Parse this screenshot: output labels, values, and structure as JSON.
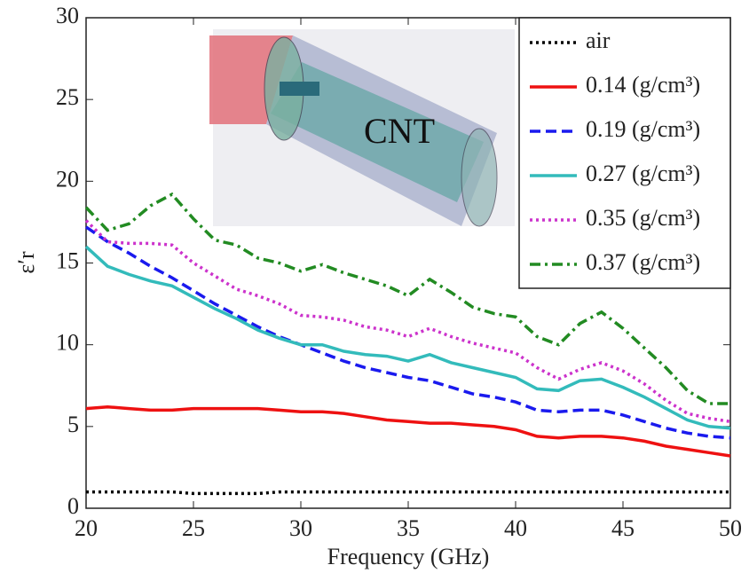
{
  "chart_data": {
    "type": "line",
    "x_label": "Frequency (GHz)",
    "y_label": "ε′r",
    "annotations": [
      "CNT"
    ],
    "x": [
      20,
      21,
      22,
      23,
      24,
      25,
      26,
      27,
      28,
      29,
      30,
      31,
      32,
      33,
      34,
      35,
      36,
      37,
      38,
      39,
      40,
      41,
      42,
      43,
      44,
      45,
      46,
      47,
      48,
      49,
      50
    ],
    "xlim": [
      20,
      50
    ],
    "xticks": [
      20,
      25,
      30,
      35,
      40,
      45,
      50
    ],
    "ylim": [
      0,
      30
    ],
    "yticks": [
      0,
      5,
      10,
      15,
      20,
      25,
      30
    ],
    "grid": false,
    "legend": "upper right",
    "series": [
      {
        "name": "air",
        "color": "#000000",
        "line_style": "dotted",
        "values": [
          1.0,
          1.0,
          1.0,
          1.0,
          1.0,
          0.9,
          0.9,
          0.9,
          0.9,
          1.0,
          1.0,
          1.0,
          1.0,
          1.0,
          1.0,
          1.0,
          1.0,
          1.0,
          1.0,
          1.0,
          1.0,
          1.0,
          1.0,
          1.0,
          1.0,
          1.0,
          1.0,
          1.0,
          1.0,
          1.0,
          1.0
        ]
      },
      {
        "name": "0.14 (g/cm³)",
        "color": "#ee1111",
        "line_style": "solid",
        "values": [
          6.1,
          6.2,
          6.1,
          6.0,
          6.0,
          6.1,
          6.1,
          6.1,
          6.1,
          6.0,
          5.9,
          5.9,
          5.8,
          5.6,
          5.4,
          5.3,
          5.2,
          5.2,
          5.1,
          5.0,
          4.8,
          4.4,
          4.3,
          4.4,
          4.4,
          4.3,
          4.1,
          3.8,
          3.6,
          3.4,
          3.2
        ]
      },
      {
        "name": "0.19 (g/cm³)",
        "color": "#1a1aee",
        "line_style": "dashed",
        "values": [
          17.2,
          16.3,
          15.6,
          14.8,
          14.1,
          13.3,
          12.5,
          11.8,
          11.1,
          10.5,
          10.0,
          9.5,
          9.0,
          8.6,
          8.3,
          8.0,
          7.8,
          7.4,
          7.0,
          6.8,
          6.5,
          6.0,
          5.9,
          6.0,
          6.0,
          5.7,
          5.3,
          4.9,
          4.6,
          4.4,
          4.3
        ]
      },
      {
        "name": "0.27 (g/cm³)",
        "color": "#33bbbb",
        "line_style": "solid",
        "values": [
          16.0,
          14.8,
          14.3,
          13.9,
          13.6,
          12.9,
          12.2,
          11.6,
          10.9,
          10.4,
          10.0,
          10.0,
          9.6,
          9.4,
          9.3,
          9.0,
          9.4,
          8.9,
          8.6,
          8.3,
          8.0,
          7.3,
          7.2,
          7.8,
          7.9,
          7.4,
          6.8,
          6.1,
          5.4,
          5.0,
          4.9
        ]
      },
      {
        "name": "0.35 (g/cm³)",
        "color": "#cc33cc",
        "line_style": "dotted",
        "values": [
          17.6,
          16.3,
          16.2,
          16.2,
          16.1,
          15.0,
          14.2,
          13.4,
          13.0,
          12.5,
          11.8,
          11.7,
          11.5,
          11.1,
          10.9,
          10.5,
          11.0,
          10.5,
          10.1,
          9.8,
          9.5,
          8.6,
          7.9,
          8.5,
          8.9,
          8.4,
          7.6,
          6.6,
          5.8,
          5.5,
          5.3
        ]
      },
      {
        "name": "0.37 (g/cm³)",
        "color": "#228b22",
        "line_style": "dashdot",
        "values": [
          18.4,
          17.0,
          17.4,
          18.5,
          19.2,
          17.7,
          16.4,
          16.1,
          15.3,
          15.0,
          14.5,
          14.9,
          14.4,
          14.0,
          13.6,
          13.0,
          14.0,
          13.2,
          12.3,
          11.9,
          11.7,
          10.5,
          10.0,
          11.3,
          12.0,
          11.0,
          9.8,
          8.6,
          7.2,
          6.4,
          6.4
        ]
      }
    ]
  }
}
